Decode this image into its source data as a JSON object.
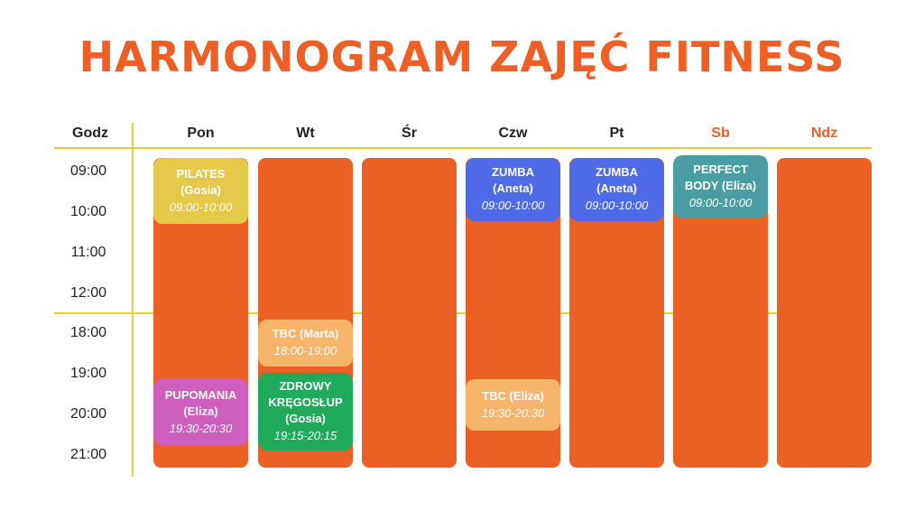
{
  "title": "HARMONOGRAM ZAJĘĆ FITNESS",
  "header": {
    "hours_label": "Godz"
  },
  "days": [
    {
      "label": "Pon"
    },
    {
      "label": "Wt"
    },
    {
      "label": "Śr"
    },
    {
      "label": "Czw"
    },
    {
      "label": "Pt"
    },
    {
      "label": "Sb"
    },
    {
      "label": "Ndz"
    }
  ],
  "times": [
    "09:00",
    "10:00",
    "11:00",
    "12:00",
    "18:00",
    "19:00",
    "20:00",
    "21:00"
  ],
  "colors": {
    "title": "#ee5f26",
    "column": "#eb6025",
    "grid_line": "#e6cf3e",
    "weekend_header": "#ee5f26",
    "pilates": "#e4c94a",
    "zumba": "#4f6ae6",
    "perfect_body": "#4a9ea3",
    "tbc": "#f6b56a",
    "pupomania": "#cf5fbf",
    "zdrowy": "#1faa5c"
  },
  "events": {
    "pilates": {
      "name": "PILATES",
      "instructor": "(Gosia)",
      "time": "09:00-10:00"
    },
    "zumba_czw": {
      "name": "ZUMBA",
      "instructor": "(Aneta)",
      "time": "09:00-10:00"
    },
    "zumba_pt": {
      "name": "ZUMBA",
      "instructor": "(Aneta)",
      "time": "09:00-10:00"
    },
    "perfect_body": {
      "name": "PERFECT",
      "name2": "BODY (Eliza)",
      "time": "09:00-10:00"
    },
    "tbc_wt": {
      "name": "TBC (Marta)",
      "time": "18:00-19:00"
    },
    "zdrowy": {
      "name": "ZDROWY",
      "name2": "KRĘGOSŁUP",
      "instructor": "(Gosia)",
      "time": "19:15-20:15"
    },
    "pupomania": {
      "name": "PUPOMANIA",
      "instructor": "(Eliza)",
      "time": "19:30-20:30"
    },
    "tbc_czw": {
      "name": "TBC (Eliza)",
      "time": "19:30-20:30"
    }
  }
}
